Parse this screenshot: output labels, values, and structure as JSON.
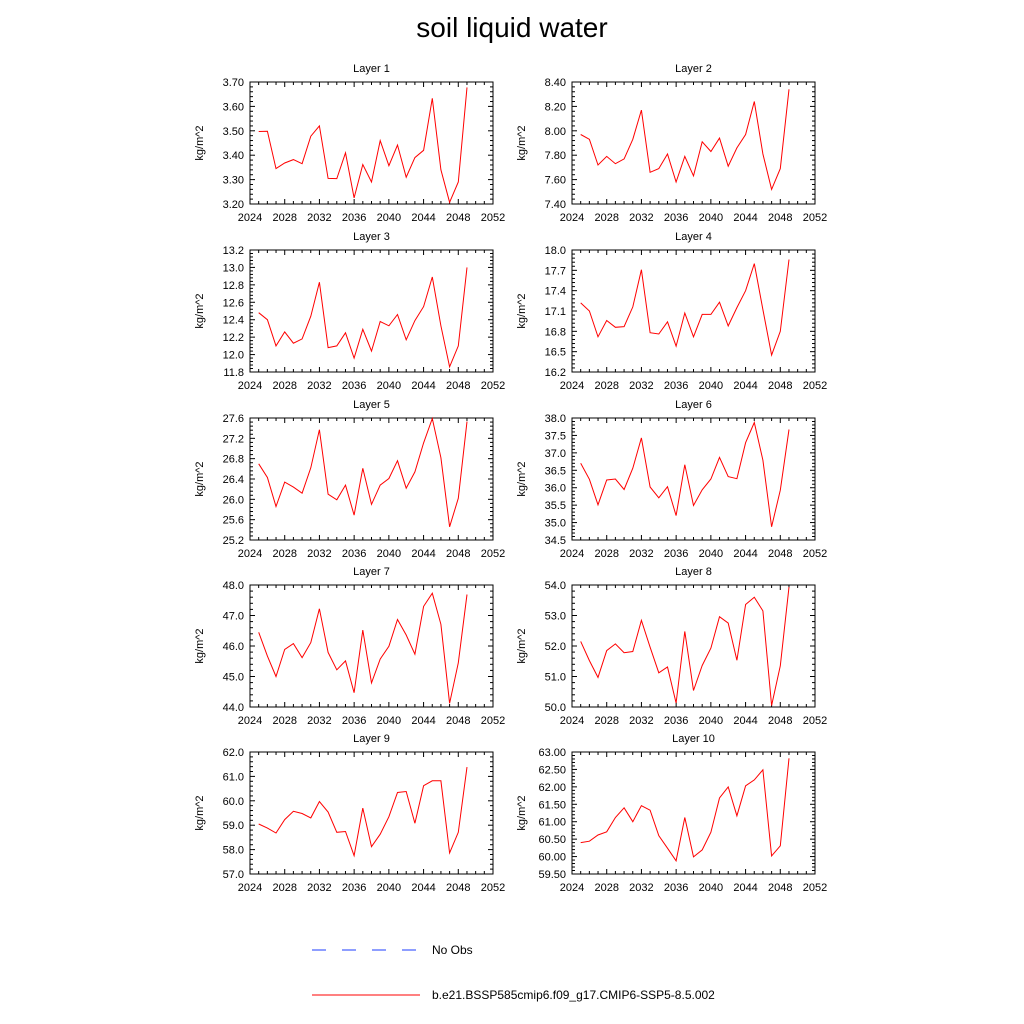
{
  "figure": {
    "title": "soil liquid water",
    "legend": [
      {
        "label": "No Obs",
        "style": "dashed",
        "color": "#1e3cff"
      },
      {
        "label": "b.e21.BSSP585cmip6.f09_g17.CMIP6-SSP5-8.5.002",
        "style": "solid",
        "color": "#ff0000"
      }
    ]
  },
  "chart_data": [
    {
      "type": "line",
      "title": "Layer 1",
      "xlabel": "",
      "ylabel": "kg/m^2",
      "xlim": [
        2024,
        2052
      ],
      "ylim": [
        3.2,
        3.7
      ],
      "xticks": [
        "2024",
        "2028",
        "2032",
        "2036",
        "2040",
        "2044",
        "2048",
        "2052"
      ],
      "yticks": [
        "3.20",
        "3.30",
        "3.40",
        "3.50",
        "3.60",
        "3.70"
      ],
      "x": [
        2025,
        2026,
        2027,
        2028,
        2029,
        2030,
        2031,
        2032,
        2033,
        2034,
        2035,
        2036,
        2037,
        2038,
        2039,
        2040,
        2041,
        2042,
        2043,
        2044,
        2045,
        2046,
        2047,
        2048,
        2049
      ],
      "series": [
        {
          "values": [
            3.497,
            3.498,
            3.345,
            3.368,
            3.382,
            3.365,
            3.478,
            3.52,
            3.305,
            3.304,
            3.41,
            3.225,
            3.362,
            3.29,
            3.46,
            3.357,
            3.442,
            3.31,
            3.39,
            3.42,
            3.633,
            3.34,
            3.207,
            3.29,
            3.678
          ],
          "color": "#ff0000"
        }
      ]
    },
    {
      "type": "line",
      "title": "Layer 2",
      "xlabel": "",
      "ylabel": "kg/m^2",
      "xlim": [
        2024,
        2052
      ],
      "ylim": [
        7.4,
        8.4
      ],
      "xticks": [
        "2024",
        "2028",
        "2032",
        "2036",
        "2040",
        "2044",
        "2048",
        "2052"
      ],
      "yticks": [
        "7.40",
        "7.60",
        "7.80",
        "8.00",
        "8.20",
        "8.40"
      ],
      "x": [
        2025,
        2026,
        2027,
        2028,
        2029,
        2030,
        2031,
        2032,
        2033,
        2034,
        2035,
        2036,
        2037,
        2038,
        2039,
        2040,
        2041,
        2042,
        2043,
        2044,
        2045,
        2046,
        2047,
        2048,
        2049
      ],
      "series": [
        {
          "values": [
            7.97,
            7.93,
            7.72,
            7.79,
            7.73,
            7.77,
            7.93,
            8.17,
            7.66,
            7.69,
            7.81,
            7.58,
            7.79,
            7.63,
            7.91,
            7.83,
            7.94,
            7.71,
            7.86,
            7.97,
            8.24,
            7.81,
            7.52,
            7.69,
            8.34
          ],
          "color": "#ff0000"
        }
      ]
    },
    {
      "type": "line",
      "title": "Layer 3",
      "xlabel": "",
      "ylabel": "kg/m^2",
      "xlim": [
        2024,
        2052
      ],
      "ylim": [
        11.8,
        13.2
      ],
      "xticks": [
        "2024",
        "2028",
        "2032",
        "2036",
        "2040",
        "2044",
        "2048",
        "2052"
      ],
      "yticks": [
        "11.8",
        "12.0",
        "12.2",
        "12.4",
        "12.6",
        "12.8",
        "13.0",
        "13.2"
      ],
      "x": [
        2025,
        2026,
        2027,
        2028,
        2029,
        2030,
        2031,
        2032,
        2033,
        2034,
        2035,
        2036,
        2037,
        2038,
        2039,
        2040,
        2041,
        2042,
        2043,
        2044,
        2045,
        2046,
        2047,
        2048,
        2049
      ],
      "series": [
        {
          "values": [
            12.48,
            12.4,
            12.1,
            12.26,
            12.13,
            12.18,
            12.44,
            12.83,
            12.08,
            12.1,
            12.25,
            11.96,
            12.29,
            12.04,
            12.38,
            12.33,
            12.46,
            12.17,
            12.39,
            12.55,
            12.89,
            12.33,
            11.86,
            12.1,
            13.0
          ],
          "color": "#ff0000"
        }
      ]
    },
    {
      "type": "line",
      "title": "Layer 4",
      "xlabel": "",
      "ylabel": "kg/m^2",
      "xlim": [
        2024,
        2052
      ],
      "ylim": [
        16.2,
        18.0
      ],
      "xticks": [
        "2024",
        "2028",
        "2032",
        "2036",
        "2040",
        "2044",
        "2048",
        "2052"
      ],
      "yticks": [
        "16.2",
        "16.5",
        "16.8",
        "17.1",
        "17.4",
        "17.7",
        "18.0"
      ],
      "x": [
        2025,
        2026,
        2027,
        2028,
        2029,
        2030,
        2031,
        2032,
        2033,
        2034,
        2035,
        2036,
        2037,
        2038,
        2039,
        2040,
        2041,
        2042,
        2043,
        2044,
        2045,
        2046,
        2047,
        2048,
        2049
      ],
      "series": [
        {
          "values": [
            17.22,
            17.1,
            16.72,
            16.96,
            16.86,
            16.87,
            17.16,
            17.71,
            16.78,
            16.76,
            16.94,
            16.58,
            17.07,
            16.72,
            17.05,
            17.05,
            17.23,
            16.88,
            17.15,
            17.4,
            17.8,
            17.12,
            16.45,
            16.8,
            17.86
          ],
          "color": "#ff0000"
        }
      ]
    },
    {
      "type": "line",
      "title": "Layer 5",
      "xlabel": "",
      "ylabel": "kg/m^2",
      "xlim": [
        2024,
        2052
      ],
      "ylim": [
        25.2,
        27.6
      ],
      "xticks": [
        "2024",
        "2028",
        "2032",
        "2036",
        "2040",
        "2044",
        "2048",
        "2052"
      ],
      "yticks": [
        "25.2",
        "25.6",
        "26.0",
        "26.4",
        "26.8",
        "27.2",
        "27.6"
      ],
      "x": [
        2025,
        2026,
        2027,
        2028,
        2029,
        2030,
        2031,
        2032,
        2033,
        2034,
        2035,
        2036,
        2037,
        2038,
        2039,
        2040,
        2041,
        2042,
        2043,
        2044,
        2045,
        2046,
        2047,
        2048,
        2049
      ],
      "series": [
        {
          "values": [
            26.7,
            26.43,
            25.86,
            26.34,
            26.24,
            26.12,
            26.62,
            27.37,
            26.1,
            25.99,
            26.28,
            25.69,
            26.61,
            25.9,
            26.28,
            26.41,
            26.76,
            26.22,
            26.54,
            27.11,
            27.59,
            26.82,
            25.46,
            26.02,
            27.53
          ],
          "color": "#ff0000"
        }
      ]
    },
    {
      "type": "line",
      "title": "Layer 6",
      "xlabel": "",
      "ylabel": "kg/m^2",
      "xlim": [
        2024,
        2052
      ],
      "ylim": [
        34.5,
        38.0
      ],
      "xticks": [
        "2024",
        "2028",
        "2032",
        "2036",
        "2040",
        "2044",
        "2048",
        "2052"
      ],
      "yticks": [
        "34.5",
        "35.0",
        "35.5",
        "36.0",
        "36.5",
        "37.0",
        "37.5",
        "38.0"
      ],
      "x": [
        2025,
        2026,
        2027,
        2028,
        2029,
        2030,
        2031,
        2032,
        2033,
        2034,
        2035,
        2036,
        2037,
        2038,
        2039,
        2040,
        2041,
        2042,
        2043,
        2044,
        2045,
        2046,
        2047,
        2048,
        2049
      ],
      "series": [
        {
          "values": [
            36.7,
            36.24,
            35.51,
            36.22,
            36.25,
            35.95,
            36.56,
            37.43,
            36.02,
            35.71,
            36.03,
            35.2,
            36.66,
            35.49,
            35.94,
            36.25,
            36.87,
            36.32,
            36.26,
            37.29,
            37.87,
            36.79,
            34.88,
            35.93,
            37.67
          ],
          "color": "#ff0000"
        }
      ]
    },
    {
      "type": "line",
      "title": "Layer 7",
      "xlabel": "",
      "ylabel": "kg/m^2",
      "xlim": [
        2024,
        2052
      ],
      "ylim": [
        44.0,
        48.0
      ],
      "xticks": [
        "2024",
        "2028",
        "2032",
        "2036",
        "2040",
        "2044",
        "2048",
        "2052"
      ],
      "yticks": [
        "44.0",
        "45.0",
        "46.0",
        "47.0",
        "48.0"
      ],
      "x": [
        2025,
        2026,
        2027,
        2028,
        2029,
        2030,
        2031,
        2032,
        2033,
        2034,
        2035,
        2036,
        2037,
        2038,
        2039,
        2040,
        2041,
        2042,
        2043,
        2044,
        2045,
        2046,
        2047,
        2048,
        2049
      ],
      "series": [
        {
          "values": [
            46.45,
            45.67,
            45.0,
            45.89,
            46.08,
            45.62,
            46.11,
            47.22,
            45.79,
            45.22,
            45.51,
            44.47,
            46.52,
            44.79,
            45.57,
            45.99,
            46.87,
            46.36,
            45.73,
            47.3,
            47.73,
            46.71,
            44.12,
            45.45,
            47.69
          ],
          "color": "#ff0000"
        }
      ]
    },
    {
      "type": "line",
      "title": "Layer 8",
      "xlabel": "",
      "ylabel": "kg/m^2",
      "xlim": [
        2024,
        2052
      ],
      "ylim": [
        50.0,
        54.0
      ],
      "xticks": [
        "2024",
        "2028",
        "2032",
        "2036",
        "2040",
        "2044",
        "2048",
        "2052"
      ],
      "yticks": [
        "50.0",
        "51.0",
        "52.0",
        "53.0",
        "54.0"
      ],
      "x": [
        2025,
        2026,
        2027,
        2028,
        2029,
        2030,
        2031,
        2032,
        2033,
        2034,
        2035,
        2036,
        2037,
        2038,
        2039,
        2040,
        2041,
        2042,
        2043,
        2044,
        2045,
        2046,
        2047,
        2048,
        2049
      ],
      "series": [
        {
          "values": [
            52.15,
            51.52,
            50.97,
            51.85,
            52.07,
            51.78,
            51.82,
            52.84,
            51.96,
            51.12,
            51.31,
            50.13,
            52.48,
            50.54,
            51.36,
            51.93,
            52.96,
            52.75,
            51.53,
            53.36,
            53.6,
            53.15,
            50.05,
            51.35,
            53.93
          ],
          "color": "#ff0000"
        }
      ]
    },
    {
      "type": "line",
      "title": "Layer 9",
      "xlabel": "",
      "ylabel": "kg/m^2",
      "xlim": [
        2024,
        2052
      ],
      "ylim": [
        57.0,
        62.0
      ],
      "xticks": [
        "2024",
        "2028",
        "2032",
        "2036",
        "2040",
        "2044",
        "2048",
        "2052"
      ],
      "yticks": [
        "57.0",
        "58.0",
        "59.0",
        "60.0",
        "61.0",
        "62.0"
      ],
      "x": [
        2025,
        2026,
        2027,
        2028,
        2029,
        2030,
        2031,
        2032,
        2033,
        2034,
        2035,
        2036,
        2037,
        2038,
        2039,
        2040,
        2041,
        2042,
        2043,
        2044,
        2045,
        2046,
        2047,
        2048,
        2049
      ],
      "series": [
        {
          "values": [
            59.05,
            58.88,
            58.68,
            59.23,
            59.57,
            59.48,
            59.3,
            59.97,
            59.54,
            58.71,
            58.74,
            57.75,
            59.7,
            58.12,
            58.63,
            59.35,
            60.34,
            60.38,
            59.08,
            60.62,
            60.82,
            60.82,
            57.86,
            58.71,
            61.38
          ],
          "color": "#ff0000"
        }
      ]
    },
    {
      "type": "line",
      "title": "Layer 10",
      "xlabel": "",
      "ylabel": "kg/m^2",
      "xlim": [
        2024,
        2052
      ],
      "ylim": [
        59.5,
        63.0
      ],
      "xticks": [
        "2024",
        "2028",
        "2032",
        "2036",
        "2040",
        "2044",
        "2048",
        "2052"
      ],
      "yticks": [
        "59.50",
        "60.00",
        "60.50",
        "61.00",
        "61.50",
        "62.00",
        "62.50",
        "63.00"
      ],
      "x": [
        2025,
        2026,
        2027,
        2028,
        2029,
        2030,
        2031,
        2032,
        2033,
        2034,
        2035,
        2036,
        2037,
        2038,
        2039,
        2040,
        2041,
        2042,
        2043,
        2044,
        2045,
        2046,
        2047,
        2048,
        2049
      ],
      "series": [
        {
          "values": [
            60.4,
            60.44,
            60.62,
            60.71,
            61.12,
            61.4,
            61.0,
            61.46,
            61.33,
            60.6,
            60.24,
            59.88,
            61.12,
            59.99,
            60.19,
            60.7,
            61.68,
            62.0,
            61.17,
            62.03,
            62.2,
            62.49,
            60.02,
            60.31,
            62.82
          ],
          "color": "#ff0000"
        }
      ]
    }
  ]
}
